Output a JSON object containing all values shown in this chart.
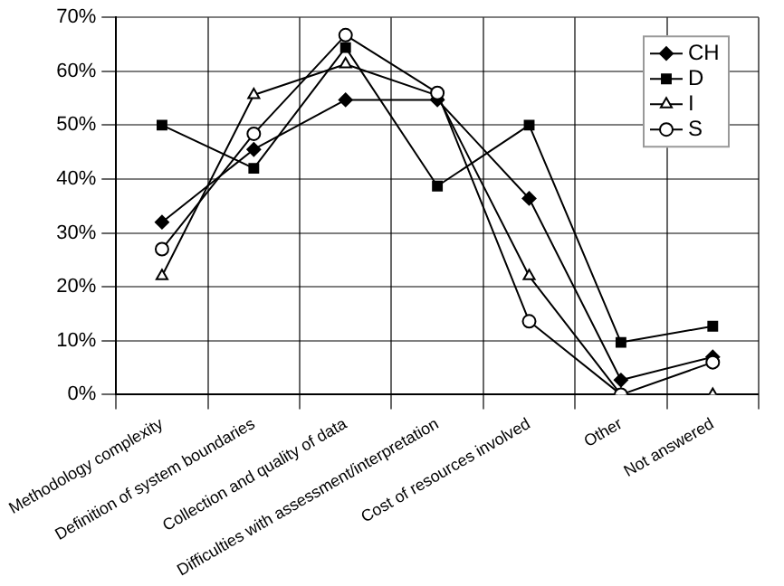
{
  "chart_data": {
    "type": "line",
    "categories": [
      "Methodology complexity",
      "Definition of system boundaries",
      "Collection and quality of data",
      "Difficulties with assessment/interpretation",
      "Cost of resources involved",
      "Other",
      "Not answered"
    ],
    "series": [
      {
        "name": "CH",
        "color": "#000000",
        "marker": "diamond",
        "values": [
          32,
          45.5,
          54.7,
          54.7,
          36.4,
          2.7,
          7
        ]
      },
      {
        "name": "D",
        "color": "#000000",
        "marker": "square",
        "values": [
          50,
          42,
          64.4,
          38.7,
          50,
          9.7,
          12.7
        ]
      },
      {
        "name": "I",
        "color": "#000000",
        "marker": "triangle",
        "values": [
          22,
          55.6,
          61.3,
          55.5,
          22,
          0,
          0
        ]
      },
      {
        "name": "S",
        "color": "#000000",
        "marker": "circle",
        "values": [
          27,
          48.4,
          66.7,
          56,
          13.6,
          0,
          6
        ]
      }
    ],
    "ylim": [
      0,
      70
    ],
    "yticks": [
      {
        "value": 0,
        "label": "0%"
      },
      {
        "value": 10,
        "label": "10%"
      },
      {
        "value": 20,
        "label": "20%"
      },
      {
        "value": 30,
        "label": "30%"
      },
      {
        "value": 40,
        "label": "40%"
      },
      {
        "value": 50,
        "label": "50%"
      },
      {
        "value": 60,
        "label": "60%"
      },
      {
        "value": 70,
        "label": "70%"
      }
    ],
    "grid": true,
    "legend": "top right",
    "line_style": "solid"
  }
}
